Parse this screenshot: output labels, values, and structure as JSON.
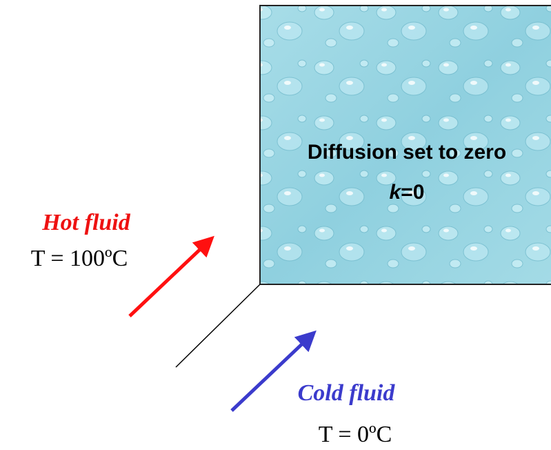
{
  "box": {
    "title": "Diffusion set to zero",
    "k_symbol": "k",
    "k_value": "=0"
  },
  "hot": {
    "label": "Hot fluid",
    "temperature": "T = 100ºC"
  },
  "cold": {
    "label": "Cold fluid",
    "temperature": "T = 0ºC"
  }
}
